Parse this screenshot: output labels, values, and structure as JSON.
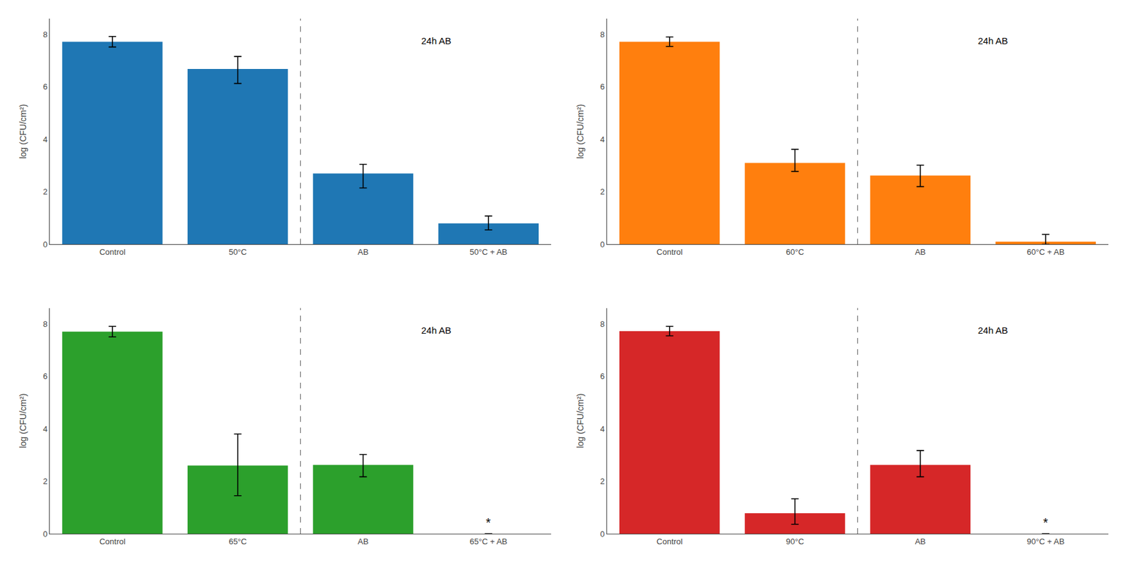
{
  "chart_data": [
    {
      "type": "bar",
      "categories": [
        "Control",
        "50°C",
        "AB",
        "50°C + AB"
      ],
      "values": [
        7.72,
        6.68,
        2.7,
        0.8
      ],
      "error_upper": [
        0.2,
        0.48,
        0.35,
        0.28
      ],
      "error_lower": [
        0.2,
        0.55,
        0.55,
        0.25
      ],
      "ylim": [
        0,
        8.6
      ],
      "yticks": [
        0,
        2,
        4,
        6,
        8
      ],
      "ylabel": "log (CFU/cm²)",
      "grid": false,
      "annotations": [
        {
          "text": "24h AB"
        }
      ],
      "vlines": [
        {
          "x": 1.5,
          "line_style": "dashed",
          "color": "#777777"
        }
      ]
    },
    {
      "type": "bar",
      "categories": [
        "Control",
        "60°C",
        "AB",
        "60°C + AB"
      ],
      "values": [
        7.72,
        3.1,
        2.62,
        0.1
      ],
      "error_upper": [
        0.18,
        0.52,
        0.4,
        0.28
      ],
      "error_lower": [
        0.18,
        0.32,
        0.42,
        0.1
      ],
      "ylim": [
        0,
        8.6
      ],
      "yticks": [
        0,
        2,
        4,
        6,
        8
      ],
      "ylabel": "log (CFU/cm²)",
      "grid": false,
      "annotations": [
        {
          "text": "24h AB"
        }
      ],
      "vlines": [
        {
          "x": 1.5,
          "line_style": "dashed",
          "color": "#777777"
        }
      ]
    },
    {
      "type": "bar",
      "categories": [
        "Control",
        "65°C",
        "AB",
        "65°C + AB"
      ],
      "values": [
        7.7,
        2.6,
        2.62,
        0.0
      ],
      "error_upper": [
        0.2,
        1.2,
        0.4,
        0.0
      ],
      "error_lower": [
        0.2,
        1.15,
        0.45,
        0.0
      ],
      "ylim": [
        0,
        8.6
      ],
      "yticks": [
        0,
        2,
        4,
        6,
        8
      ],
      "ylabel": "log (CFU/cm²)",
      "grid": false,
      "annotations": [
        {
          "text": "24h AB"
        },
        {
          "text": "*",
          "category": "65°C + AB",
          "y": 0.42
        }
      ],
      "vlines": [
        {
          "x": 1.5,
          "line_style": "dashed",
          "color": "#777777"
        }
      ]
    },
    {
      "type": "bar",
      "categories": [
        "Control",
        "90°C",
        "AB",
        "90°C + AB"
      ],
      "values": [
        7.72,
        0.78,
        2.62,
        0.0
      ],
      "error_upper": [
        0.18,
        0.55,
        0.55,
        0.0
      ],
      "error_lower": [
        0.18,
        0.42,
        0.45,
        0.0
      ],
      "ylim": [
        0,
        8.6
      ],
      "yticks": [
        0,
        2,
        4,
        6,
        8
      ],
      "ylabel": "log (CFU/cm²)",
      "grid": false,
      "annotations": [
        {
          "text": "24h AB"
        },
        {
          "text": "*",
          "category": "90°C + AB",
          "y": 0.42
        }
      ],
      "vlines": [
        {
          "x": 1.5,
          "line_style": "dashed",
          "color": "#777777"
        }
      ]
    }
  ]
}
